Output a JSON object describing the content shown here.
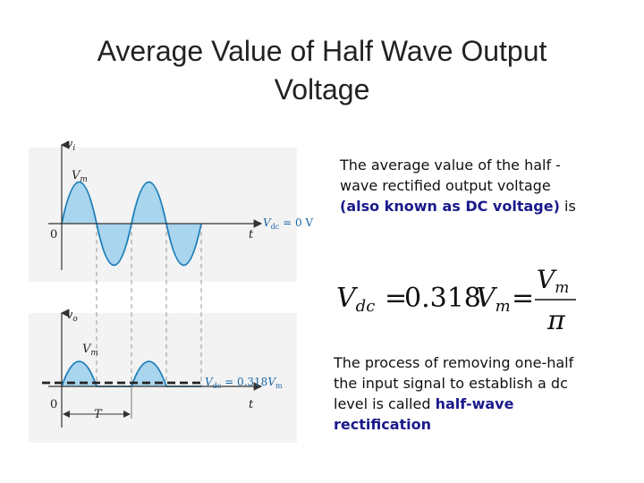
{
  "title_line1": "Average Value of Half Wave Output",
  "title_line2": "Voltage",
  "para1": {
    "text_before": "The average value of the half -wave rectified output voltage ",
    "highlight": "(also known as DC voltage)",
    "text_after": " is"
  },
  "formula": {
    "lhs_main": "V",
    "lhs_sub": "dc",
    "equals1": "=",
    "coef": "0.318",
    "mid_main": "V",
    "mid_sub": "m",
    "equals2": "=",
    "frac_num_main": "V",
    "frac_num_sub": "m",
    "frac_den": "π"
  },
  "para2": {
    "text_before": "The process of removing one-half the input signal to establish a dc level is called ",
    "highlight": "half-wave rectification"
  },
  "figure": {
    "top": {
      "axis_label_main": "v",
      "axis_label_sub": "i",
      "peak_label_main": "V",
      "peak_label_sub": "m",
      "origin": "0",
      "time_label": "t",
      "dc_label_main": "V",
      "dc_label_sub": "dc",
      "dc_label_value": " = 0 V"
    },
    "bottom": {
      "axis_label_main": "v",
      "axis_label_sub": "o",
      "peak_label_main": "V",
      "peak_label_sub": "m",
      "origin": "0",
      "time_label": "t",
      "period_label": "T",
      "dc_label_main": "V",
      "dc_label_sub": "dc",
      "dc_label_value": " = 0.318",
      "dc_label_tail_main": "V",
      "dc_label_tail_sub": "m"
    }
  },
  "colors": {
    "fill": "#a9d5ee",
    "wave": "#1d7fb8",
    "highlight": "#1a1a8c"
  }
}
